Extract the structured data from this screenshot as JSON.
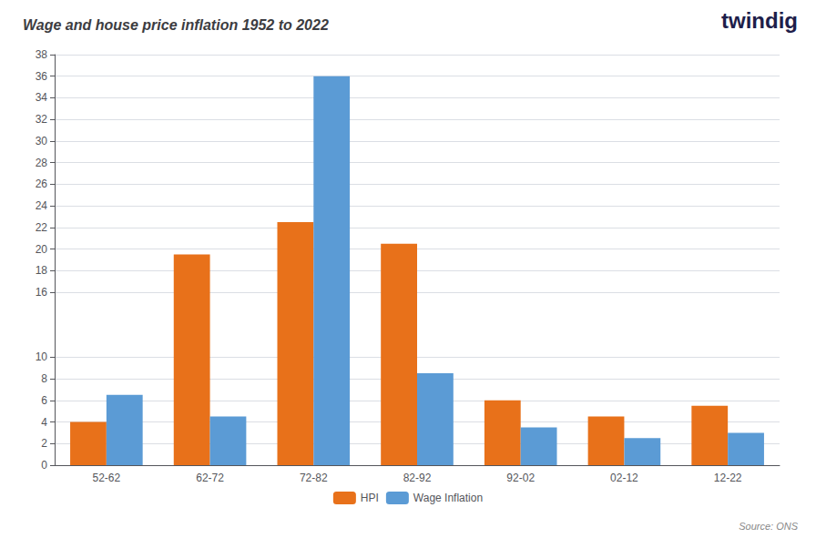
{
  "chart_data": {
    "type": "bar",
    "title": "Wage and house price inflation 1952 to 2022",
    "categories": [
      "52-62",
      "62-72",
      "72-82",
      "82-92",
      "92-02",
      "02-12",
      "12-22"
    ],
    "series": [
      {
        "name": "HPI",
        "color": "#E8711A",
        "values": [
          4.0,
          19.5,
          22.5,
          20.5,
          6.0,
          4.5,
          5.5
        ]
      },
      {
        "name": "Wage Inflation",
        "color": "#5B9BD5",
        "values": [
          6.5,
          4.5,
          36.0,
          8.5,
          3.5,
          2.5,
          3.0
        ]
      }
    ],
    "ylim": [
      0,
      38
    ],
    "yticks": [
      0,
      2,
      4,
      6,
      8,
      10,
      16,
      18,
      20,
      22,
      24,
      26,
      28,
      30,
      32,
      34,
      36,
      38
    ],
    "grid": true,
    "legend": "bottom",
    "annotations": [
      "Source: ONS",
      "twindig"
    ]
  }
}
